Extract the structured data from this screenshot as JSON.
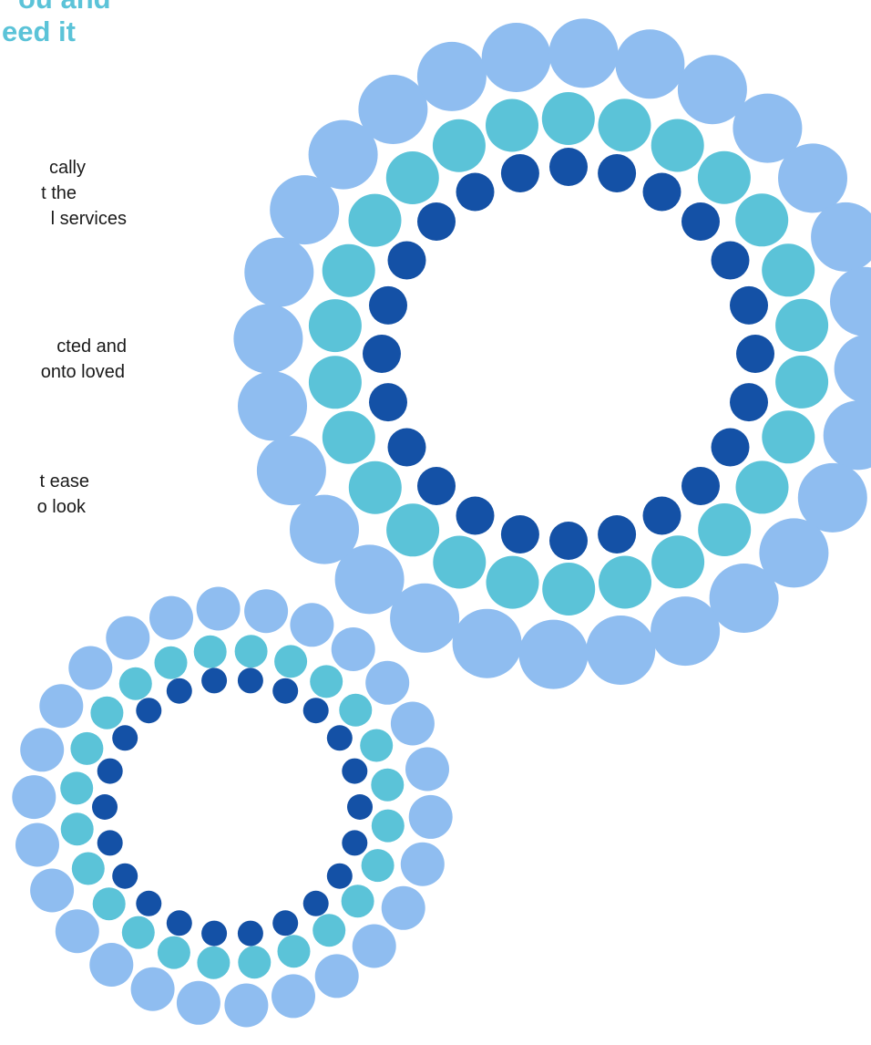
{
  "heading": {
    "line1": "ou and",
    "line2": "eed it"
  },
  "paragraphs": [
    {
      "lines": [
        "cally",
        "t the",
        "l services"
      ],
      "right": [
        94,
        84,
        139
      ]
    },
    {
      "lines": [
        "cted and",
        "onto loved"
      ],
      "right": [
        139,
        137
      ]
    },
    {
      "lines": [
        "t ease",
        "o look"
      ],
      "right": [
        98,
        94
      ]
    }
  ],
  "colors": {
    "heading": "#5bc3d8",
    "outer_dots": "#8fbdf0",
    "middle_dots": "#5bc3d8",
    "inner_dots": "#1451a6",
    "body_text": "#1a1a1a"
  },
  "decorations": [
    {
      "name": "large-dot-ring"
    },
    {
      "name": "small-dot-ring"
    }
  ]
}
